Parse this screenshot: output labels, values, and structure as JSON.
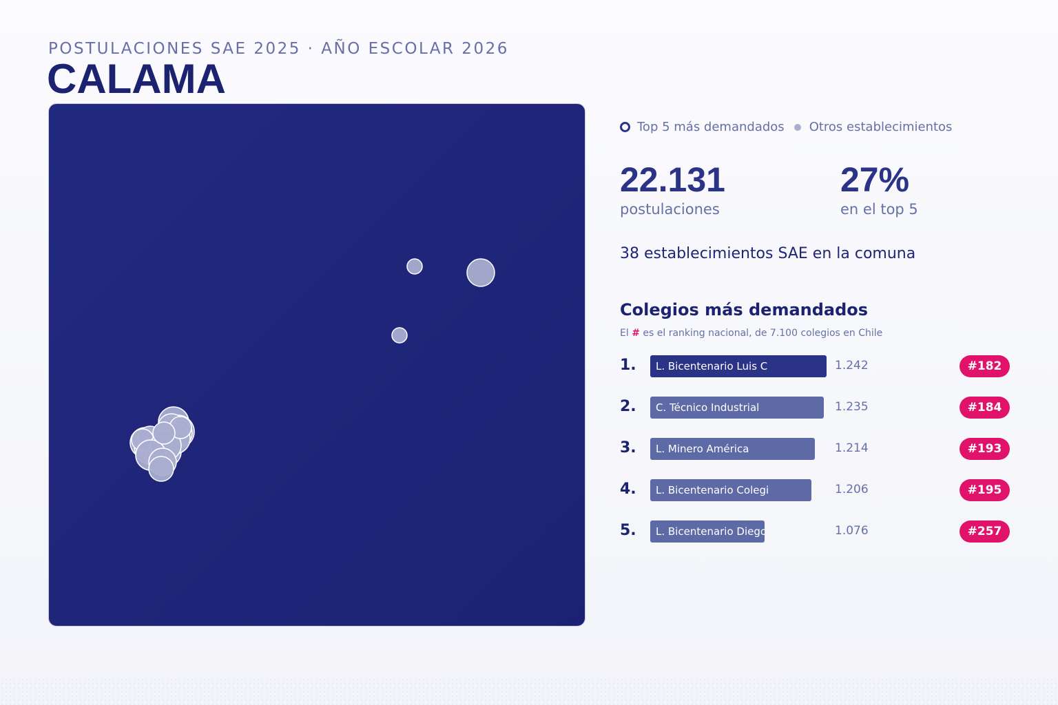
{
  "header": {
    "subtitle": "POSTULACIONES SAE 2025 · AÑO ESCOLAR 2026",
    "title": "CALAMA"
  },
  "legend": {
    "top5_label": "Top 5 más demandados",
    "others_label": "Otros establecimientos"
  },
  "stats": {
    "applications_value": "22.131",
    "applications_label": "postulaciones",
    "top5_share_value": "27%",
    "top5_share_label": "en el top 5",
    "establishments_text": "38 establecimientos SAE en la comuna"
  },
  "ranking": {
    "heading": "Colegios más demandados",
    "note_prefix": "El",
    "note_hash": "#",
    "note_suffix": "es el ranking nacional, de 7.100 colegios en Chile",
    "max_value": 1242,
    "schools": [
      {
        "rank": "1.",
        "name": "L. Bicentenario Luis C",
        "applications": 1242,
        "applications_label": "1.242",
        "national_rank": "#182"
      },
      {
        "rank": "2.",
        "name": "C. Técnico Industrial",
        "applications": 1235,
        "applications_label": "1.235",
        "national_rank": "#184"
      },
      {
        "rank": "3.",
        "name": "L. Minero América",
        "applications": 1214,
        "applications_label": "1.214",
        "national_rank": "#193"
      },
      {
        "rank": "4.",
        "name": "L. Bicentenario Colegi",
        "applications": 1206,
        "applications_label": "1.206",
        "national_rank": "#195"
      },
      {
        "rank": "5.",
        "name": "L. Bicentenario Diego",
        "applications": 1076,
        "applications_label": "1.076",
        "national_rank": "#257"
      }
    ]
  },
  "colors": {
    "map_background": "#1f267a",
    "marker_fill": "#a9aed0",
    "marker_stroke": "#ffffff",
    "badge": "#e0126a",
    "bar_first": "#2b3386",
    "bar_other": "#5d6aa6"
  }
}
